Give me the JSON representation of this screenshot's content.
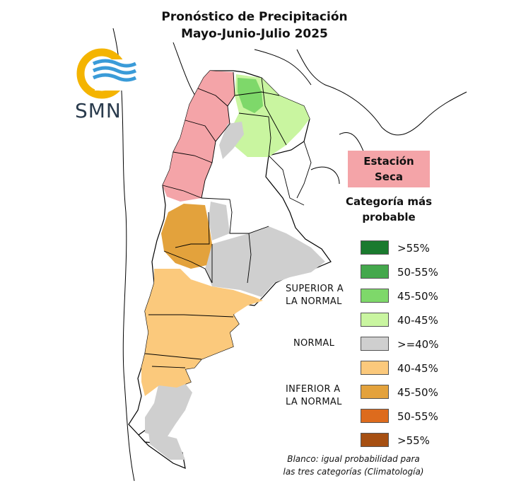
{
  "title": {
    "line1": "Pronóstico de Precipitación",
    "line2": "Mayo-Junio-Julio 2025"
  },
  "logo": {
    "text": "SMN",
    "icon": "smn-logo-icon"
  },
  "dry_season": {
    "line1": "Estación",
    "line2": "Seca",
    "color": "#f4a4a8"
  },
  "legend": {
    "title_line1": "Categoría más",
    "title_line2": "probable",
    "groups": {
      "superior_line1": "SUPERIOR A",
      "superior_line2": "LA NORMAL",
      "normal": "NORMAL",
      "inferior_line1": "INFERIOR A",
      "inferior_line2": "LA NORMAL"
    },
    "items": [
      {
        "label": ">55%",
        "color": "#1a7a2e"
      },
      {
        "label": "50-55%",
        "color": "#44a84c"
      },
      {
        "label": "45-50%",
        "color": "#7ed86a"
      },
      {
        "label": "40-45%",
        "color": "#c9f5a0"
      },
      {
        "label": ">=40%",
        "color": "#cfcfcf"
      },
      {
        "label": "40-45%",
        "color": "#fbc97c"
      },
      {
        "label": "45-50%",
        "color": "#e3a23c"
      },
      {
        "label": "50-55%",
        "color": "#dd6b1d"
      },
      {
        "label": ">55%",
        "color": "#a64f12"
      }
    ]
  },
  "footnote": {
    "line1": "Blanco: igual probabilidad para",
    "line2": "las tres categorías (Climatología)"
  }
}
